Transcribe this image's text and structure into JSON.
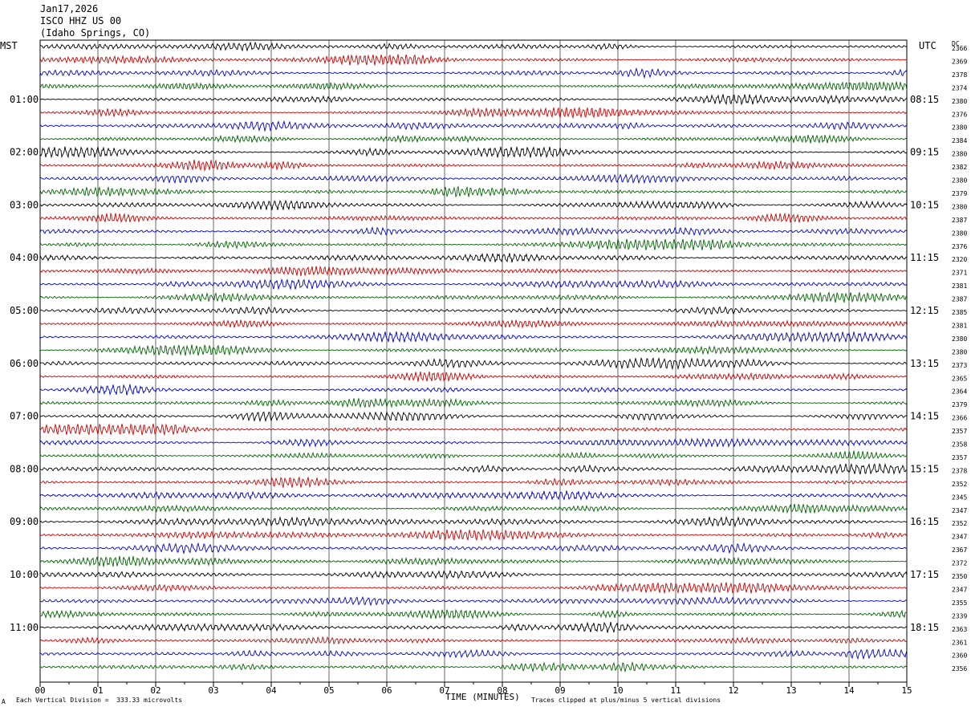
{
  "header": {
    "date": "Jan17,2026",
    "station": "ISCO HHZ US 00",
    "location": "(Idaho Springs, CO)"
  },
  "left_tz": "MST",
  "right_tz": "UTC",
  "dc_label": "DC",
  "footer": {
    "scale": "Each Vertical Division =  333.33 microvolts",
    "clip": "Traces clipped at plus/minus 5 vertical divisions",
    "corner": "A"
  },
  "colors": {
    "grid": "#000000",
    "trace_cycle": [
      "#000000",
      "#cc0000",
      "#0000cc",
      "#006400"
    ]
  },
  "chart_data": {
    "type": "line",
    "title": "",
    "xlabel": "TIME (MINUTES)",
    "ylabel": "",
    "xlim": [
      0,
      15
    ],
    "x_ticks": [
      "00",
      "01",
      "02",
      "03",
      "04",
      "05",
      "06",
      "07",
      "08",
      "09",
      "10",
      "11",
      "12",
      "13",
      "14",
      "15"
    ],
    "rows_per_hour": 4,
    "row_count": 48,
    "left_hour_labels": [
      "01:00",
      "02:00",
      "03:00",
      "04:00",
      "05:00",
      "06:00",
      "07:00",
      "08:00",
      "09:00",
      "10:00",
      "11:00"
    ],
    "right_hour_labels": [
      "08:15",
      "09:15",
      "10:15",
      "11:15",
      "12:15",
      "13:15",
      "14:15",
      "15:15",
      "16:15",
      "17:15",
      "18:15"
    ],
    "dc_offsets": [
      "2366",
      "2369",
      "2378",
      "2374",
      "2380",
      "2376",
      "2380",
      "2384",
      "2380",
      "2382",
      "2380",
      "2379",
      "2380",
      "2387",
      "2380",
      "2376",
      "2320",
      "2371",
      "2381",
      "2387",
      "2385",
      "2381",
      "2380",
      "2380",
      "2373",
      "2365",
      "2364",
      "2379",
      "2366",
      "2357",
      "2358",
      "2357",
      "2378",
      "2352",
      "2345",
      "2347",
      "2352",
      "2347",
      "2367",
      "2372",
      "2350",
      "2347",
      "2355",
      "2339",
      "2363",
      "2361",
      "2360",
      "2356"
    ]
  }
}
